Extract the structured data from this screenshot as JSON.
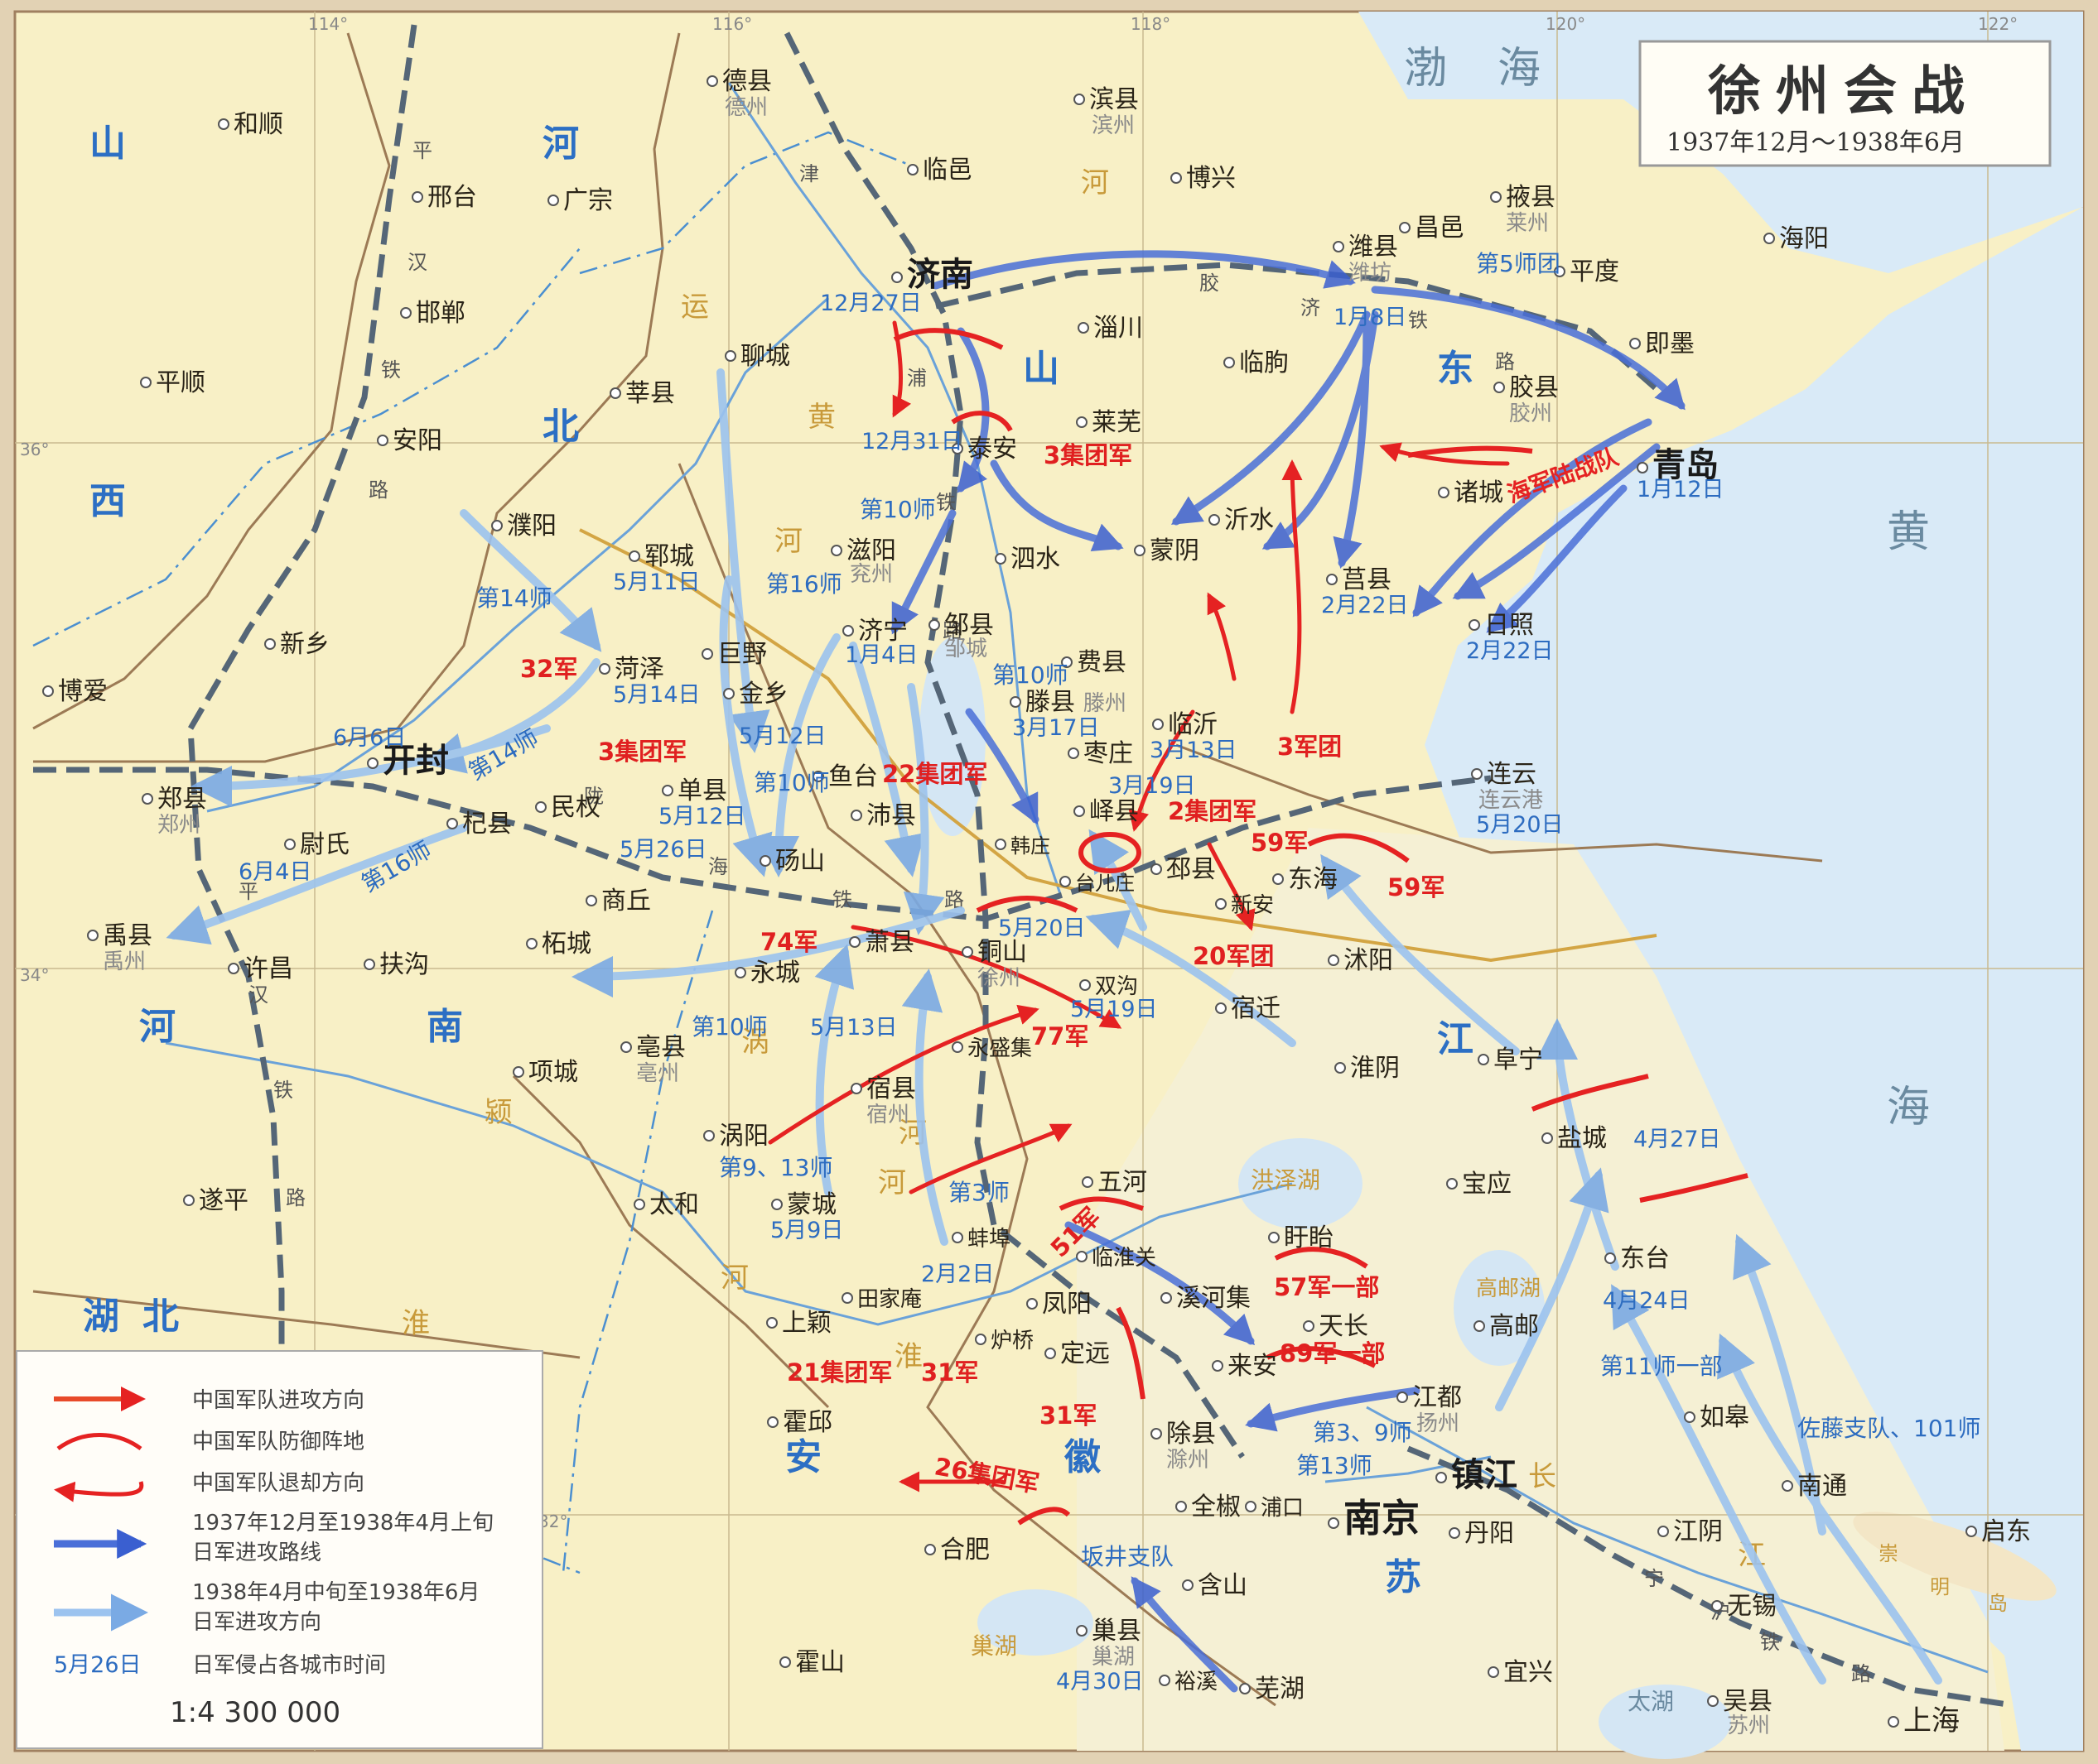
{
  "title": {
    "main": "徐州会战",
    "sub": "1937年12月～1938年6月"
  },
  "legend": {
    "items": [
      {
        "kind": "cn-attack",
        "label": "中国军队进攻方向"
      },
      {
        "kind": "cn-defense",
        "label": "中国军队防御阵地"
      },
      {
        "kind": "cn-retreat",
        "label": "中国军队退却方向"
      },
      {
        "kind": "jp-route1",
        "label": "1937年12月至1938年4月上旬",
        "label2": "日军进攻路线"
      },
      {
        "kind": "jp-route2",
        "label": "1938年4月中旬至1938年6月",
        "label2": "日军进攻方向"
      },
      {
        "kind": "date",
        "sample": "5月26日",
        "label": "日军侵占各城市时间"
      }
    ],
    "scale": "1:4 300 000"
  },
  "grid_labels": {
    "lon": [
      "114°",
      "116°",
      "118°",
      "120°",
      "122°"
    ],
    "lat": [
      "36°",
      "34°",
      "32°"
    ]
  },
  "provinces": [
    "山",
    "西",
    "河",
    "北",
    "山",
    "东",
    "河",
    "南",
    "江",
    "安",
    "徽",
    "江",
    "苏",
    "湖",
    "北"
  ],
  "seas": [
    "渤",
    "海",
    "黄",
    "海"
  ],
  "rivers": [
    "黄",
    "河",
    "运",
    "河",
    "河",
    "淮",
    "河",
    "涡",
    "河",
    "颍",
    "长",
    "江",
    "淮",
    "河",
    "洪泽湖",
    "高邮湖",
    "巢湖",
    "太湖",
    "崇",
    "明",
    "岛"
  ],
  "railways": [
    "平",
    "汉",
    "铁",
    "路",
    "津",
    "浦",
    "铁",
    "路",
    "胶",
    "济",
    "铁",
    "路",
    "陇",
    "海",
    "铁",
    "路",
    "宁",
    "沪",
    "铁",
    "路",
    "平",
    "汉",
    "铁",
    "路"
  ],
  "cities": {
    "hefshun": "和顺",
    "xingtai": "邢台",
    "guangzong": "广宗",
    "handan": "邯郸",
    "pingshun": "平顺",
    "anyang": "安阳",
    "xinxiang": "新乡",
    "boai": "博爱",
    "dezhou": "德县",
    "dezhou_alt": "德州",
    "linyi_n": "临邑",
    "binxian": "滨县",
    "binzhou_alt": "滨州",
    "boxing": "博兴",
    "yexian": "掖县",
    "laizhou_alt": "莱州",
    "haiyang": "海阳",
    "weixian": "潍县",
    "weifang_alt": "潍坊",
    "changyi": "昌邑",
    "pingdu": "平度",
    "jimo": "即墨",
    "jinan": "济南",
    "zichuan": "淄川",
    "linqu": "临朐",
    "liaocheng": "聊城",
    "shenxian": "莘县",
    "jiaoxian": "胶县",
    "jiaozhou_alt": "胶州",
    "qingdao": "青岛",
    "zhucheng": "诸城",
    "laiwu": "莱芜",
    "taian": "泰安",
    "puyang": "濮阳",
    "yishui": "沂水",
    "juxian": "莒县",
    "mengyin": "蒙阴",
    "sishui": "泗水",
    "yuncheng": "郓城",
    "ciyang": "滋阳",
    "yanzhou_alt": "兖州",
    "jining": "济宁",
    "zouxian": "邹县",
    "zoucheng_alt": "邹城",
    "feixian": "费县",
    "rizhao": "日照",
    "heze": "菏泽",
    "juye": "巨野",
    "jinxiang": "金乡",
    "tengxian": "滕县",
    "tengzhou_alt": "滕州",
    "linyi": "临沂",
    "kaifeng": "开封",
    "zaozhuang": "枣庄",
    "zhengxian": "郑县",
    "zhengzhou_alt": "郑州",
    "shanxian": "单县",
    "yutai": "鱼台",
    "minquan": "民权",
    "yixian": "峄县",
    "lianyun": "连云",
    "lianyungang_alt": "连云港",
    "qixian": "杞县",
    "weishi": "尉氏",
    "peixian": "沛县",
    "hanzhuang": "韩庄",
    "taierzhuang": "台儿庄",
    "pixian": "邳县",
    "donghai": "东海",
    "dangshan": "砀山",
    "shangqiu": "商丘",
    "xinan": "新安",
    "yuxian": "禹县",
    "yuzhou_alt": "禹州",
    "xuchang": "许昌",
    "fugou": "扶沟",
    "zhecheng": "柘城",
    "xiaoxian": "萧县",
    "tongshan": "铜山",
    "xuzhou_alt": "徐州",
    "shuyang": "沭阳",
    "yongcheng": "永城",
    "shuanggou": "双沟",
    "suqian": "宿迁",
    "boxian": "亳县",
    "bozhou_alt": "亳州",
    "xiangcheng": "项城",
    "yongshengji": "永盛集",
    "huaiyin": "淮阴",
    "funing": "阜宁",
    "suxian": "宿县",
    "suzhou_alt": "宿州",
    "guoyang": "涡阳",
    "yancheng": "盐城",
    "baoying": "宝应",
    "wuhe": "五河",
    "taihe": "太和",
    "mengcheng": "蒙城",
    "suiping": "遂平",
    "bengbu": "蚌埠",
    "linhuaiguan": "临淮关",
    "xuyi": "盱眙",
    "dongtai": "东台",
    "fengyang": "凤阳",
    "xihehji": "溪河集",
    "tianjiaan": "田家庵",
    "shangying": "上颖",
    "luqiao": "炉桥",
    "dingyuan": "定远",
    "tianchang": "天长",
    "gaoyou": "高邮",
    "laian": "来安",
    "huoqiu": "霍邱",
    "jiangdu": "江都",
    "yangzhou_alt": "扬州",
    "rugao": "如皋",
    "chuxian": "除县",
    "chuzhou_alt": "滁州",
    "zhenjiang": "镇江",
    "quanjiao": "全椒",
    "pukou": "浦口",
    "nanjing": "南京",
    "danyang": "丹阳",
    "nantong": "南通",
    "jiangyin": "江阴",
    "qidong": "启东",
    "hefei": "合肥",
    "hanshan": "含山",
    "wuxi": "无锡",
    "chaoxian": "巢县",
    "chaohu_alt": "巢湖",
    "huoshan": "霍山",
    "yuxi": "裕溪",
    "wuhu": "芜湖",
    "yixing": "宜兴",
    "wuxian": "吴县",
    "suzhou2_alt": "苏州",
    "shanghai": "上海"
  },
  "dates": [
    "12月27日",
    "12月31日",
    "1月8日",
    "1月12日",
    "2月22日",
    "2月22日",
    "5月11日",
    "5月14日",
    "1月4日",
    "3月17日",
    "3月13日",
    "3月19日",
    "6月6日",
    "5月12日",
    "5月12日",
    "5月26日",
    "5月20日",
    "6月4日",
    "5月20日",
    "5月13日",
    "5月19日",
    "5月9日",
    "2月2日",
    "4月27日",
    "4月24日",
    "4月30日"
  ],
  "japanese_units": [
    "第5师团",
    "海军陆战队",
    "第10师",
    "第16师",
    "第14师",
    "第10师",
    "第14师",
    "第10师",
    "第16师",
    "第10师",
    "第9、13师",
    "第3师",
    "第11师一部",
    "佐藤支队、101师",
    "第3、9师",
    "第13师",
    "坂井支队"
  ],
  "chinese_units": [
    "3集团军",
    "32军",
    "3集团军",
    "22集团军",
    "2集团军",
    "3军团",
    "59军",
    "59军",
    "20军团",
    "74军",
    "77军",
    "51军",
    "57军一部",
    "89军一部",
    "21集团军",
    "31军",
    "31军",
    "26集团军"
  ],
  "colors": {
    "cn_red": "#e52222",
    "jp_dark_blue": "#3a5fd0",
    "jp_light_blue": "#8db8ec",
    "land": "#f8f0c6",
    "sea": "#d9eaf7",
    "jiangsu_land": "#f7f3cf",
    "province_label": "#2c6fc4",
    "railway": "#4a5a6a"
  }
}
